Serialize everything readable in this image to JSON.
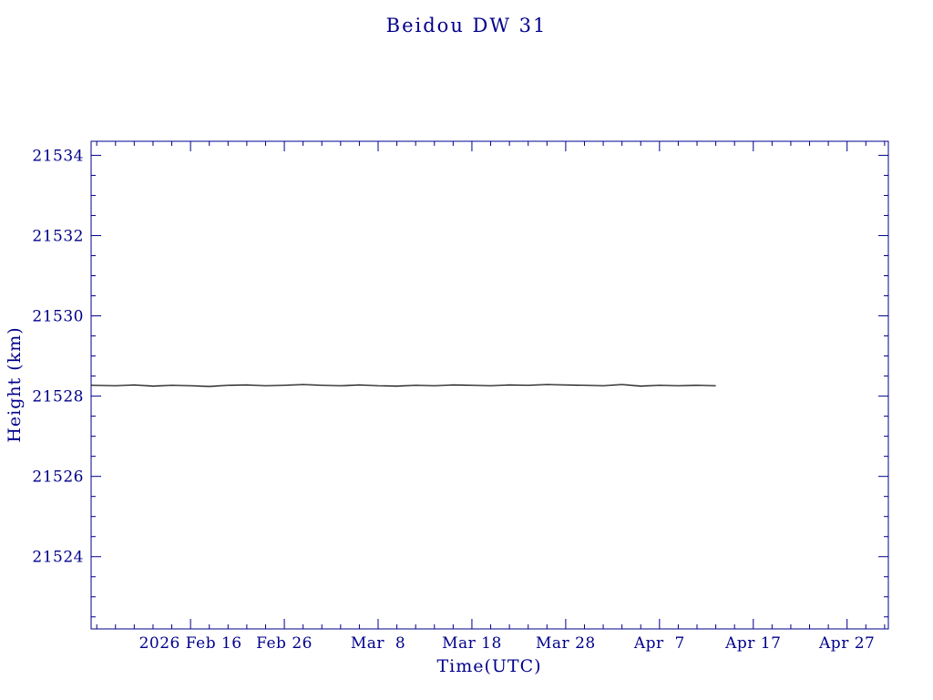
{
  "page": {
    "background": "#ffffff"
  },
  "chart_data": {
    "type": "line",
    "title": "Beidou DW 31",
    "xlabel": "Time(UTC)",
    "ylabel": "Height (km)",
    "axis_color": "#00008B",
    "line_color": "#000000",
    "grid": false,
    "legend": "none",
    "x_unit": "days since 2026 Feb 16",
    "xlim": [
      -10.6,
      74.4
    ],
    "ylim": [
      21522.2,
      21534.35
    ],
    "x_minor_step": 2,
    "y_minor_step": 0.5,
    "xticks": [
      {
        "value": 0,
        "label": "2026 Feb 16"
      },
      {
        "value": 10,
        "label": "Feb 26"
      },
      {
        "value": 20,
        "label": "Mar  8"
      },
      {
        "value": 30,
        "label": "Mar 18"
      },
      {
        "value": 40,
        "label": "Mar 28"
      },
      {
        "value": 50,
        "label": "Apr  7"
      },
      {
        "value": 60,
        "label": "Apr 17"
      },
      {
        "value": 70,
        "label": "Apr 27"
      }
    ],
    "yticks": [
      {
        "value": 21524,
        "label": "21524"
      },
      {
        "value": 21526,
        "label": "21526"
      },
      {
        "value": 21528,
        "label": "21528"
      },
      {
        "value": 21530,
        "label": "21530"
      },
      {
        "value": 21532,
        "label": "21532"
      },
      {
        "value": 21534,
        "label": "21534"
      }
    ],
    "series": [
      {
        "name": "height",
        "x": [
          -10.6,
          -8,
          -6,
          -4,
          -2,
          0,
          2,
          4,
          6,
          8,
          10,
          12,
          14,
          16,
          18,
          20,
          22,
          24,
          26,
          28,
          30,
          32,
          34,
          36,
          38,
          40,
          42,
          44,
          46,
          48,
          50,
          52,
          54,
          56
        ],
        "y": [
          21528.27,
          21528.26,
          21528.28,
          21528.25,
          21528.27,
          21528.26,
          21528.24,
          21528.27,
          21528.28,
          21528.26,
          21528.27,
          21528.29,
          21528.27,
          21528.26,
          21528.28,
          21528.26,
          21528.25,
          21528.27,
          21528.26,
          21528.28,
          21528.27,
          21528.26,
          21528.28,
          21528.27,
          21528.29,
          21528.28,
          21528.27,
          21528.26,
          21528.29,
          21528.25,
          21528.27,
          21528.26,
          21528.27,
          21528.26
        ]
      }
    ]
  }
}
